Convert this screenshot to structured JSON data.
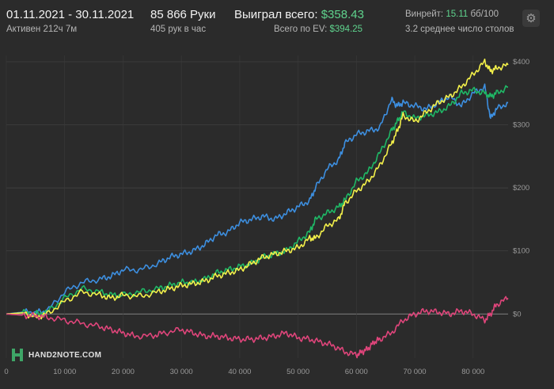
{
  "header": {
    "date_range": "01.11.2021 - 30.11.2021",
    "active": "Активен 212ч 7м",
    "hands": "85 866 Руки",
    "hands_per_hour": "405 рук в час",
    "won_label": "Выиграл всего:",
    "won_value": "$358.43",
    "ev_label": "Всего по EV:",
    "ev_value": "$394.25",
    "winrate_label": "Винрейт:",
    "winrate_value": "15.11",
    "winrate_unit": "бб/100",
    "tables": "3.2 среднее число столов",
    "settings_icon": "gear-icon"
  },
  "logo": {
    "text": "HAND2NOTE.COM",
    "icon": "hand2note-logo-icon"
  },
  "colors": {
    "background": "#2b2b2b",
    "yellow": "#f3f04a",
    "green": "#1fb866",
    "blue": "#3d8fe0",
    "red": "#e0457b",
    "accent": "#5fd38d"
  },
  "chart_data": {
    "type": "line",
    "xlim": [
      0,
      86000
    ],
    "ylim": [
      -70,
      410
    ],
    "x_ticks": [
      0,
      10000,
      20000,
      30000,
      40000,
      50000,
      60000,
      70000,
      80000
    ],
    "x_tick_labels": [
      "0",
      "10 000",
      "20 000",
      "30 000",
      "40 000",
      "50 000",
      "60 000",
      "70 000",
      "80 000"
    ],
    "y_ticks": [
      0,
      100,
      200,
      300,
      400
    ],
    "y_tick_labels": [
      "$0",
      "$100",
      "$200",
      "$300",
      "$400"
    ],
    "grid": true,
    "series": [
      {
        "color": "#3d8fe0",
        "x": [
          0,
          3000,
          5000,
          7000,
          10000,
          13000,
          16000,
          18000,
          20000,
          23000,
          26000,
          28000,
          30000,
          32000,
          34000,
          36000,
          38000,
          40000,
          42000,
          44000,
          46000,
          48000,
          50000,
          52000,
          53000,
          55000,
          57000,
          58000,
          60000,
          62000,
          64000,
          66000,
          67000,
          68000,
          70000,
          72000,
          74000,
          76000,
          78000,
          80000,
          82000,
          83000,
          84000,
          86000
        ],
        "y": [
          0,
          3,
          2,
          5,
          35,
          50,
          55,
          60,
          70,
          70,
          80,
          90,
          95,
          100,
          110,
          125,
          130,
          145,
          150,
          155,
          150,
          160,
          170,
          180,
          200,
          230,
          245,
          270,
          285,
          290,
          295,
          340,
          330,
          335,
          330,
          325,
          335,
          345,
          330,
          350,
          360,
          310,
          325,
          335
        ]
      },
      {
        "color": "#1fb866",
        "x": [
          0,
          3000,
          5000,
          7000,
          10000,
          13000,
          16000,
          18000,
          20000,
          23000,
          26000,
          28000,
          30000,
          32000,
          34000,
          36000,
          38000,
          40000,
          42000,
          44000,
          46000,
          48000,
          50000,
          52000,
          53000,
          55000,
          57000,
          58000,
          60000,
          62000,
          64000,
          66000,
          67000,
          68000,
          70000,
          72000,
          74000,
          76000,
          78000,
          80000,
          82000,
          83000,
          84000,
          86000
        ],
        "y": [
          0,
          2,
          0,
          3,
          25,
          40,
          35,
          30,
          30,
          35,
          40,
          45,
          50,
          50,
          55,
          65,
          70,
          75,
          80,
          90,
          95,
          100,
          115,
          130,
          150,
          160,
          170,
          180,
          210,
          225,
          255,
          290,
          305,
          320,
          310,
          315,
          320,
          330,
          350,
          355,
          350,
          345,
          350,
          360
        ]
      },
      {
        "color": "#f3f04a",
        "x": [
          0,
          3000,
          5000,
          7000,
          10000,
          13000,
          16000,
          18000,
          20000,
          23000,
          26000,
          28000,
          30000,
          32000,
          34000,
          36000,
          38000,
          40000,
          42000,
          44000,
          46000,
          48000,
          50000,
          52000,
          53000,
          55000,
          57000,
          58000,
          60000,
          62000,
          64000,
          66000,
          67000,
          68000,
          70000,
          72000,
          74000,
          76000,
          78000,
          80000,
          82000,
          83000,
          84000,
          86000
        ],
        "y": [
          0,
          2,
          -5,
          0,
          20,
          35,
          30,
          25,
          30,
          28,
          35,
          40,
          45,
          48,
          52,
          60,
          65,
          70,
          80,
          90,
          95,
          100,
          105,
          120,
          120,
          140,
          150,
          175,
          195,
          210,
          235,
          270,
          290,
          315,
          305,
          320,
          335,
          345,
          360,
          380,
          400,
          385,
          390,
          395
        ]
      },
      {
        "color": "#e0457b",
        "x": [
          0,
          3000,
          5000,
          7000,
          10000,
          13000,
          16000,
          18000,
          20000,
          22000,
          25000,
          27000,
          30000,
          32000,
          34000,
          36000,
          38000,
          40000,
          42000,
          44000,
          46000,
          48000,
          50000,
          52000,
          54000,
          56000,
          58000,
          60000,
          61000,
          62000,
          63000,
          64000,
          66000,
          68000,
          70000,
          72000,
          74000,
          76000,
          78000,
          80000,
          82000,
          83000,
          84000,
          86000
        ],
        "y": [
          0,
          -2,
          -3,
          -5,
          -10,
          -15,
          -20,
          -25,
          -30,
          -35,
          -35,
          -30,
          -25,
          -30,
          -35,
          -35,
          -38,
          -40,
          -40,
          -38,
          -35,
          -30,
          -38,
          -40,
          -45,
          -50,
          -60,
          -65,
          -60,
          -55,
          -45,
          -40,
          -30,
          -10,
          0,
          5,
          3,
          0,
          5,
          0,
          -10,
          0,
          15,
          25
        ]
      }
    ]
  }
}
